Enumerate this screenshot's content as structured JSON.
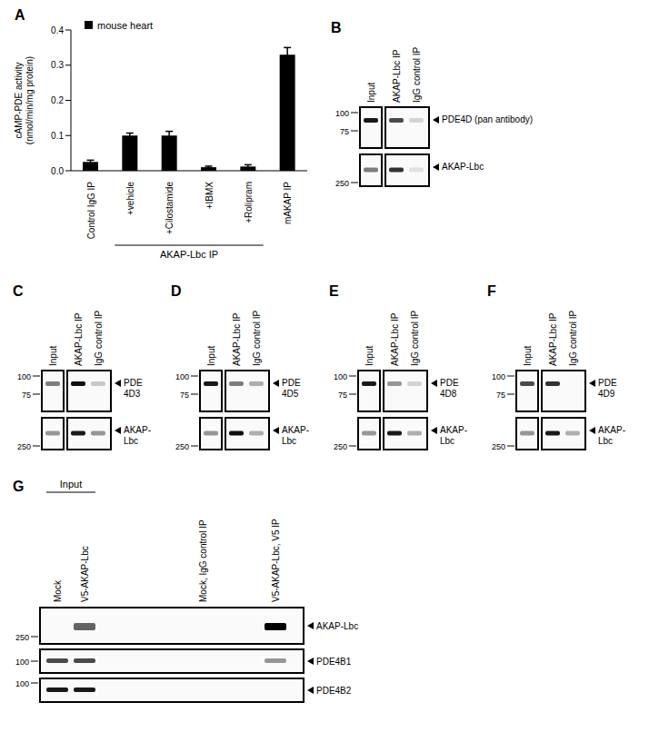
{
  "chart_data": {
    "panel": "A",
    "type": "bar",
    "categories": [
      "Control IgG IP",
      "+vehicle",
      "+Cilostamide",
      "+IBMX",
      "+Rolipram",
      "mAKAP IP"
    ],
    "series": [
      {
        "name": "mouse heart",
        "color": "#000000",
        "values": [
          0.025,
          0.1,
          0.1,
          0.01,
          0.012,
          0.33
        ],
        "errors": [
          0.005,
          0.007,
          0.012,
          0.003,
          0.005,
          0.02
        ]
      }
    ],
    "ylim": [
      0,
      0.4
    ],
    "yticks": [
      {
        "value": 0,
        "label": "0.0"
      },
      0.1,
      0.2,
      0.3,
      0.4
    ],
    "y_label": "cAMP-PDE activity (nmol/min/mg protein)",
    "legend": "upper left",
    "grid": false,
    "bracket": {
      "label": "AKAP-Lbc IP",
      "categories": [
        "+vehicle",
        "+Cilostamide",
        "+IBMX",
        "+Rolipram"
      ]
    }
  },
  "blots": [
    {
      "panel": "B",
      "lanes": [
        "Input",
        "AKAP-Lbc IP",
        "IgG control IP"
      ],
      "rows": [
        {
          "markers": [
            100,
            75
          ],
          "label_lines": [
            "PDE4D (pan antibody)"
          ],
          "band_intensity": [
            0.9,
            0.7,
            0.15
          ]
        },
        {
          "markers": [
            250
          ],
          "label_lines": [
            "AKAP-Lbc"
          ],
          "band_intensity": [
            0.5,
            0.8,
            0.1
          ]
        }
      ]
    },
    {
      "panel": "C",
      "lanes": [
        "Input",
        "AKAP-Lbc IP",
        "IgG control IP"
      ],
      "rows": [
        {
          "markers": [
            100,
            75
          ],
          "label_lines": [
            "PDE",
            "4D3"
          ],
          "band_intensity": [
            0.5,
            0.95,
            0.2
          ]
        },
        {
          "markers": [
            250
          ],
          "label_lines": [
            "AKAP-",
            "Lbc"
          ],
          "band_intensity": [
            0.4,
            0.9,
            0.4
          ]
        }
      ]
    },
    {
      "panel": "D",
      "lanes": [
        "Input",
        "AKAP-Lbc IP",
        "IgG control IP"
      ],
      "rows": [
        {
          "markers": [
            100,
            75
          ],
          "label_lines": [
            "PDE",
            "4D5"
          ],
          "band_intensity": [
            0.9,
            0.5,
            0.3
          ]
        },
        {
          "markers": [
            250
          ],
          "label_lines": [
            "AKAP-",
            "Lbc"
          ],
          "band_intensity": [
            0.4,
            0.95,
            0.3
          ]
        }
      ]
    },
    {
      "panel": "E",
      "lanes": [
        "Input",
        "AKAP-Lbc IP",
        "IgG control IP"
      ],
      "rows": [
        {
          "markers": [
            100,
            75
          ],
          "label_lines": [
            "PDE",
            "4D8"
          ],
          "band_intensity": [
            0.9,
            0.4,
            0.15
          ]
        },
        {
          "markers": [
            250
          ],
          "label_lines": [
            "AKAP-",
            "Lbc"
          ],
          "band_intensity": [
            0.4,
            0.9,
            0.3
          ]
        }
      ]
    },
    {
      "panel": "F",
      "lanes": [
        "Input",
        "AKAP-Lbc IP",
        "IgG control IP"
      ],
      "rows": [
        {
          "markers": [
            100,
            75
          ],
          "label_lines": [
            "PDE",
            "4D9"
          ],
          "band_intensity": [
            0.7,
            0.8,
            0
          ]
        },
        {
          "markers": [
            250
          ],
          "label_lines": [
            "AKAP-",
            "Lbc"
          ],
          "band_intensity": [
            0.4,
            0.9,
            0.3
          ]
        }
      ]
    },
    {
      "panel": "G",
      "lane_group": {
        "label": "Input",
        "lanes": [
          "Mock",
          "V5-AKAP-Lbc"
        ]
      },
      "lanes": [
        "Mock",
        "V5-AKAP-Lbc",
        "Mock, IgG control IP",
        "V5-AKAP-Lbc, V5 IP"
      ],
      "rows": [
        {
          "markers": [
            250
          ],
          "label_lines": [
            "AKAP-Lbc"
          ],
          "band_intensity": [
            0,
            0.6,
            0,
            1
          ]
        },
        {
          "markers": [
            100
          ],
          "label_lines": [
            "PDE4B1"
          ],
          "band_intensity": [
            0.7,
            0.7,
            0,
            0.4
          ]
        },
        {
          "markers": [
            100
          ],
          "label_lines": [
            "PDE4B2"
          ],
          "band_intensity": [
            0.9,
            0.9,
            0,
            0
          ]
        }
      ]
    }
  ]
}
